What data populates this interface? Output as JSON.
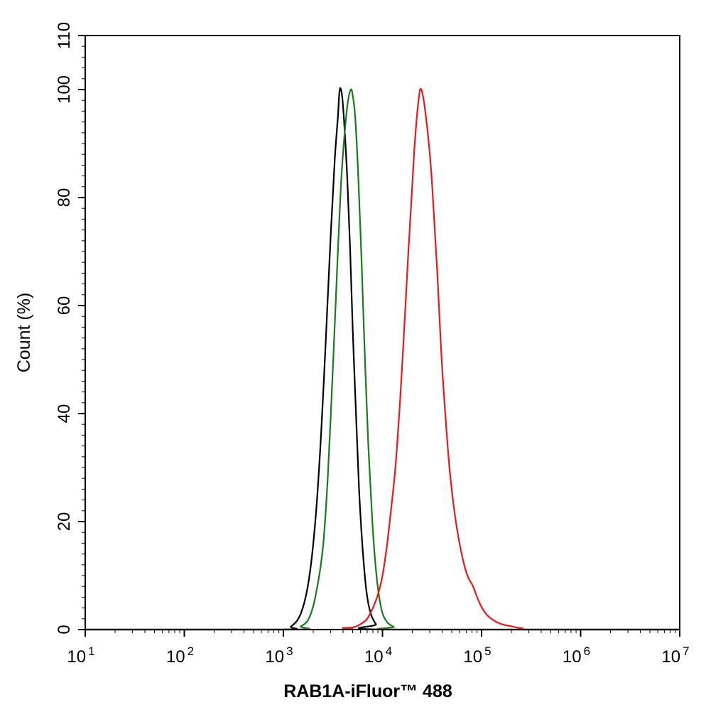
{
  "chart_data": {
    "type": "line",
    "title": "",
    "xlabel": "RAB1A-iFluor™ 488",
    "ylabel": "Count  (%)",
    "x_scale": "log",
    "xlim": [
      10,
      10000000
    ],
    "ylim": [
      0,
      110
    ],
    "x_ticks": [
      {
        "base": "10",
        "exp": "1",
        "value": 10
      },
      {
        "base": "10",
        "exp": "2",
        "value": 100
      },
      {
        "base": "10",
        "exp": "3",
        "value": 1000
      },
      {
        "base": "10",
        "exp": "4",
        "value": 10000
      },
      {
        "base": "10",
        "exp": "5",
        "value": 100000
      },
      {
        "base": "10",
        "exp": "6",
        "value": 1000000
      },
      {
        "base": "10",
        "exp": "7",
        "value": 10000000
      }
    ],
    "y_ticks": [
      "0",
      "20",
      "40",
      "60",
      "80",
      "100",
      "110"
    ],
    "grid": false,
    "legend": "none",
    "series": [
      {
        "color": "#000000",
        "points": [
          [
            900,
            0
          ],
          [
            1200,
            0.6
          ],
          [
            1500,
            3
          ],
          [
            1800,
            9
          ],
          [
            2100,
            20
          ],
          [
            2400,
            36
          ],
          [
            2700,
            55
          ],
          [
            3000,
            73
          ],
          [
            3300,
            87
          ],
          [
            3550,
            95
          ],
          [
            3700,
            100
          ],
          [
            3900,
            99
          ],
          [
            4100,
            94
          ],
          [
            4400,
            84
          ],
          [
            4700,
            71
          ],
          [
            5000,
            56
          ],
          [
            5400,
            40
          ],
          [
            5800,
            26
          ],
          [
            6300,
            15
          ],
          [
            6900,
            7
          ],
          [
            7600,
            3
          ],
          [
            8600,
            1
          ],
          [
            10000,
            0
          ]
        ]
      },
      {
        "color": "#1a7a1a",
        "points": [
          [
            1200,
            0
          ],
          [
            1500,
            0.6
          ],
          [
            1800,
            2
          ],
          [
            2100,
            6
          ],
          [
            2500,
            15
          ],
          [
            2800,
            28
          ],
          [
            3100,
            45
          ],
          [
            3400,
            62
          ],
          [
            3800,
            82
          ],
          [
            4200,
            93
          ],
          [
            4500,
            98
          ],
          [
            4800,
            100
          ],
          [
            5000,
            99
          ],
          [
            5300,
            95
          ],
          [
            5700,
            84
          ],
          [
            6100,
            70
          ],
          [
            6600,
            52
          ],
          [
            7200,
            34
          ],
          [
            7900,
            20
          ],
          [
            8700,
            10
          ],
          [
            9700,
            4
          ],
          [
            11000,
            1.5
          ],
          [
            13000,
            0.5
          ],
          [
            15000,
            0
          ]
        ]
      },
      {
        "color": "#e8191b",
        "points": [
          [
            3000,
            0
          ],
          [
            4000,
            0.3
          ],
          [
            5000,
            0.4
          ],
          [
            6000,
            1
          ],
          [
            7000,
            2
          ],
          [
            8000,
            4
          ],
          [
            9000,
            6.5
          ],
          [
            10000,
            10
          ],
          [
            11000,
            15
          ],
          [
            12000,
            21
          ],
          [
            13500,
            30
          ],
          [
            15000,
            42
          ],
          [
            16500,
            55
          ],
          [
            18000,
            68
          ],
          [
            19500,
            79
          ],
          [
            21000,
            89
          ],
          [
            22500,
            96
          ],
          [
            24000,
            100
          ],
          [
            25500,
            99
          ],
          [
            27000,
            96
          ],
          [
            29000,
            91
          ],
          [
            31000,
            85
          ],
          [
            33000,
            77
          ],
          [
            36000,
            65
          ],
          [
            39000,
            52
          ],
          [
            43000,
            40
          ],
          [
            48000,
            29
          ],
          [
            55000,
            20
          ],
          [
            63000,
            14
          ],
          [
            72000,
            10
          ],
          [
            82000,
            8
          ],
          [
            95000,
            5
          ],
          [
            110000,
            3
          ],
          [
            130000,
            1.8
          ],
          [
            160000,
            1
          ],
          [
            200000,
            0.6
          ],
          [
            260000,
            0.2
          ],
          [
            320000,
            0
          ]
        ]
      }
    ]
  }
}
